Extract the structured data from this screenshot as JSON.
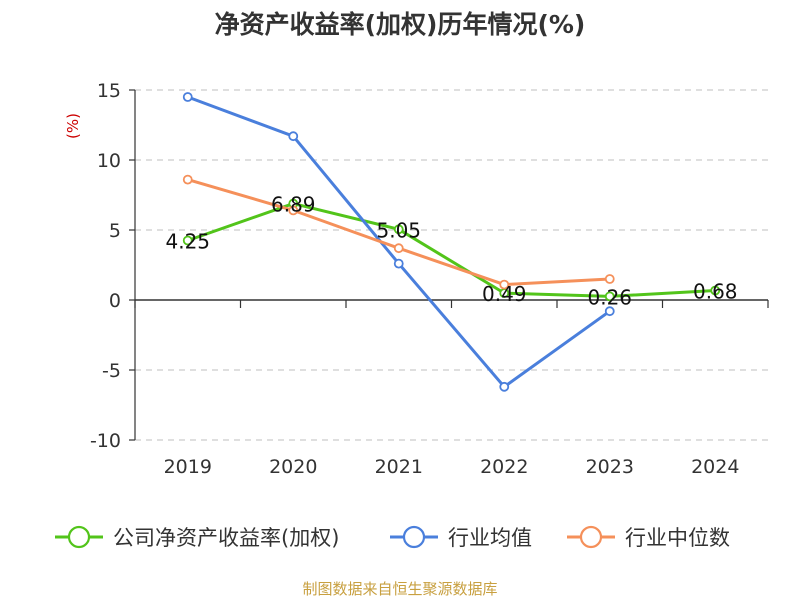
{
  "chart_data": {
    "type": "line",
    "title": "净资产收益率(加权)历年情况(%)",
    "ylabel": "(%)",
    "categories": [
      "2019",
      "2020",
      "2021",
      "2022",
      "2023",
      "2024"
    ],
    "y_ticks": [
      15,
      10,
      5,
      0,
      -5,
      -10
    ],
    "ylim": [
      -10,
      15
    ],
    "grid": true,
    "legend_position": "bottom",
    "series": [
      {
        "name": "公司净资产收益率(加权)",
        "color": "#52c41a",
        "values": [
          4.25,
          6.89,
          5.05,
          0.49,
          0.26,
          0.68
        ],
        "labels": [
          "4.25",
          "6.89",
          "5.05",
          "0.49",
          "0.26",
          "0.68"
        ]
      },
      {
        "name": "行业均值",
        "color": "#4a7fdc",
        "values": [
          14.5,
          11.7,
          2.6,
          -6.2,
          -0.8,
          null
        ]
      },
      {
        "name": "行业中位数",
        "color": "#f5905a",
        "values": [
          8.6,
          6.4,
          3.7,
          1.1,
          1.5,
          null
        ]
      }
    ],
    "source": "制图数据来自恒生聚源数据库"
  }
}
